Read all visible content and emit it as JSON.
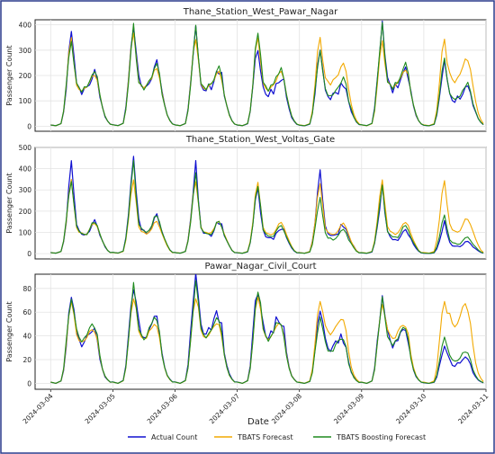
{
  "figure": {
    "xlabel": "Date",
    "legend": {
      "placement": "bottom-center",
      "entries": [
        {
          "name": "Actual Count",
          "color": "#1010d0"
        },
        {
          "name": "TBATS Forecast",
          "color": "#f2a900"
        },
        {
          "name": "TBATS Boosting Forecast",
          "color": "#1e8a1e"
        }
      ]
    }
  },
  "chart_data": [
    {
      "type": "line",
      "title": "Thane_Station_West_Pawar_Nagar",
      "ylabel": "Passenger Count",
      "xlabel": "Date",
      "xlim": [
        "2024-03-03T18:00",
        "2024-03-11T00:00"
      ],
      "ylim": [
        -20,
        420
      ],
      "yticks": [
        0,
        100,
        200,
        300,
        400
      ],
      "grid": true,
      "profile": {
        "hours": [
          0,
          2,
          4,
          5,
          6,
          7,
          8,
          9,
          10,
          11,
          12,
          13,
          14,
          15,
          16,
          17,
          18,
          19,
          20,
          21,
          22,
          23
        ],
        "actual": [
          5,
          2,
          10,
          60,
          160,
          280,
          350,
          260,
          160,
          140,
          130,
          145,
          150,
          170,
          195,
          210,
          185,
          120,
          75,
          40,
          20,
          8
        ],
        "tbats": [
          5,
          2,
          10,
          60,
          160,
          280,
          340,
          250,
          165,
          145,
          135,
          150,
          160,
          175,
          200,
          205,
          180,
          120,
          75,
          40,
          20,
          8
        ],
        "boosting": [
          5,
          2,
          10,
          60,
          160,
          280,
          355,
          255,
          165,
          145,
          135,
          150,
          160,
          175,
          195,
          215,
          185,
          120,
          75,
          40,
          20,
          8
        ]
      },
      "days": [
        {
          "date": "2024-03-04",
          "actual": 1.0,
          "tbats": 1.0,
          "boosting": 1.0,
          "tbats_pm": 1.0
        },
        {
          "date": "2024-03-05",
          "actual": 1.19,
          "tbats": 1.09,
          "boosting": 1.1,
          "tbats_pm": 1.0
        },
        {
          "date": "2024-03-06",
          "actual": 1.06,
          "tbats": 1.04,
          "boosting": 1.06,
          "tbats_pm": 1.0
        },
        {
          "date": "2024-03-07",
          "actual": 0.93,
          "tbats": 1.04,
          "boosting": 1.06,
          "tbats_pm": 1.0
        },
        {
          "date": "2024-03-08",
          "actual": 0.82,
          "tbats": 1.03,
          "boosting": 0.86,
          "tbats_pm": 1.15
        },
        {
          "date": "2024-03-09",
          "actual": 1.1,
          "tbats": 1.0,
          "boosting": 1.12,
          "tbats_pm": 1.1
        },
        {
          "date": "2024-03-10",
          "actual": 0.75,
          "tbats": 1.03,
          "boosting": 0.78,
          "tbats_pm": 1.25
        }
      ]
    },
    {
      "type": "line",
      "title": "Thane_Station_West_Voltas_Gate",
      "ylabel": "Passenger Count",
      "xlabel": "Date",
      "xlim": [
        "2024-03-03T18:00",
        "2024-03-11T00:00"
      ],
      "ylim": [
        -25,
        500
      ],
      "yticks": [
        0,
        100,
        200,
        300,
        400,
        500
      ],
      "grid": true,
      "profile": {
        "hours": [
          0,
          2,
          4,
          5,
          6,
          7,
          8,
          9,
          10,
          11,
          12,
          13,
          14,
          15,
          16,
          17,
          18,
          19,
          20,
          21,
          22,
          23
        ],
        "actual": [
          5,
          2,
          10,
          60,
          160,
          300,
          410,
          260,
          130,
          100,
          95,
          85,
          90,
          110,
          140,
          150,
          130,
          90,
          60,
          35,
          15,
          5
        ],
        "tbats": [
          5,
          2,
          10,
          60,
          150,
          270,
          340,
          230,
          125,
          100,
          95,
          90,
          95,
          115,
          140,
          145,
          125,
          90,
          60,
          35,
          15,
          5
        ],
        "boosting": [
          5,
          2,
          10,
          60,
          155,
          280,
          360,
          240,
          125,
          100,
          95,
          88,
          92,
          112,
          140,
          145,
          125,
          90,
          60,
          35,
          15,
          5
        ]
      },
      "days": [
        {
          "date": "2024-03-04",
          "actual": 1.0,
          "tbats": 1.0,
          "boosting": 1.0,
          "tbats_pm": 1.0
        },
        {
          "date": "2024-03-05",
          "actual": 1.19,
          "tbats": 1.03,
          "boosting": 1.17,
          "tbats_pm": 1.0
        },
        {
          "date": "2024-03-06",
          "actual": 1.0,
          "tbats": 1.03,
          "boosting": 1.0,
          "tbats_pm": 1.0
        },
        {
          "date": "2024-03-07",
          "actual": 0.82,
          "tbats": 1.0,
          "boosting": 0.9,
          "tbats_pm": 1.0
        },
        {
          "date": "2024-03-08",
          "actual": 0.92,
          "tbats": 0.97,
          "boosting": 0.75,
          "tbats_pm": 1.0
        },
        {
          "date": "2024-03-09",
          "actual": 0.75,
          "tbats": 1.03,
          "boosting": 0.87,
          "tbats_pm": 1.0
        },
        {
          "date": "2024-03-10",
          "actual": 0.38,
          "tbats": 1.03,
          "boosting": 0.52,
          "tbats_pm": 1.1
        }
      ]
    },
    {
      "type": "line",
      "title": "Pawar_Nagar_Civil_Court",
      "ylabel": "Passenger Count",
      "xlabel": "Date",
      "xlim": [
        "2024-03-03T18:00",
        "2024-03-11T00:00"
      ],
      "ylim": [
        -5,
        92
      ],
      "yticks": [
        0,
        20,
        40,
        60,
        80
      ],
      "grid": true,
      "xticks": [
        "2024-03-04",
        "2024-03-05",
        "2024-03-06",
        "2024-03-07",
        "2024-03-08",
        "2024-03-09",
        "2024-03-10",
        "2024-03-11"
      ],
      "profile": {
        "hours": [
          0,
          2,
          4,
          5,
          6,
          7,
          8,
          9,
          10,
          11,
          12,
          13,
          14,
          15,
          16,
          17,
          18,
          19,
          20,
          21,
          22,
          23
        ],
        "actual": [
          1,
          0,
          2,
          12,
          35,
          58,
          70,
          60,
          42,
          35,
          33,
          35,
          40,
          45,
          47,
          45,
          38,
          22,
          12,
          6,
          3,
          1
        ],
        "tbats": [
          1,
          0,
          2,
          12,
          33,
          55,
          67,
          58,
          42,
          36,
          34,
          36,
          40,
          44,
          46,
          44,
          37,
          22,
          12,
          6,
          3,
          1
        ],
        "boosting": [
          1,
          0,
          2,
          12,
          34,
          57,
          73,
          60,
          43,
          36,
          34,
          36,
          41,
          45,
          47,
          45,
          38,
          22,
          12,
          6,
          3,
          1
        ]
      },
      "days": [
        {
          "date": "2024-03-04",
          "actual": 0.97,
          "tbats": 1.0,
          "boosting": 1.03,
          "tbats_pm": 1.0
        },
        {
          "date": "2024-03-05",
          "actual": 1.2,
          "tbats": 1.07,
          "boosting": 1.12,
          "tbats_pm": 1.0
        },
        {
          "date": "2024-03-06",
          "actual": 1.24,
          "tbats": 1.1,
          "boosting": 1.12,
          "tbats_pm": 1.0
        },
        {
          "date": "2024-03-07",
          "actual": 1.17,
          "tbats": 1.1,
          "boosting": 1.08,
          "tbats_pm": 1.0
        },
        {
          "date": "2024-03-08",
          "actual": 0.83,
          "tbats": 1.03,
          "boosting": 0.78,
          "tbats_pm": 1.15
        },
        {
          "date": "2024-03-09",
          "actual": 0.98,
          "tbats": 1.0,
          "boosting": 0.97,
          "tbats_pm": 1.1
        },
        {
          "date": "2024-03-10",
          "actual": 0.45,
          "tbats": 1.05,
          "boosting": 0.55,
          "tbats_pm": 1.35
        }
      ]
    }
  ]
}
